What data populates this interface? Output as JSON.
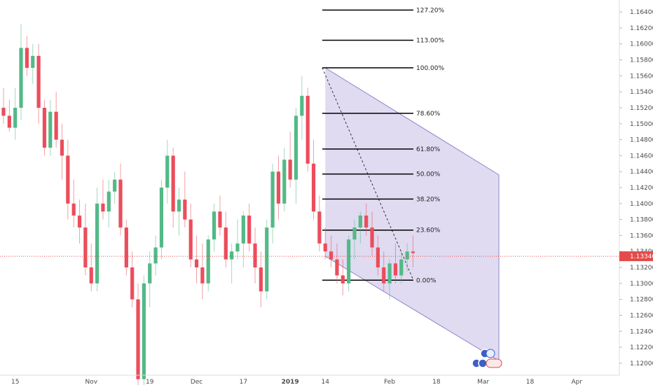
{
  "colors": {
    "up": "#53b987",
    "down": "#eb4d5c",
    "channel_fill": "#d8d2ee",
    "channel_line": "#8f86c9",
    "price_line": "#e44a4a",
    "axis_text": "#4a4a4a"
  },
  "chart_data": {
    "type": "candlestick",
    "price_axis": {
      "ylim": [
        1.1185,
        1.1655
      ],
      "ticks": [
        "1.16400",
        "1.16200",
        "1.16000",
        "1.15800",
        "1.15600",
        "1.15400",
        "1.15200",
        "1.15000",
        "1.14800",
        "1.14600",
        "1.14400",
        "1.14200",
        "1.14000",
        "1.13800",
        "1.13600",
        "1.13400",
        "1.13200",
        "1.13000",
        "1.12800",
        "1.12600",
        "1.12400",
        "1.12200",
        "1.12000"
      ],
      "current_price_label": "1.13340",
      "current_price": 1.1334
    },
    "time_axis": {
      "labels": [
        {
          "label": "15",
          "bar": 2
        },
        {
          "label": "Nov",
          "bar": 15
        },
        {
          "label": "19",
          "bar": 25
        },
        {
          "label": "Dec",
          "bar": 33
        },
        {
          "label": "17",
          "bar": 41
        },
        {
          "label": "2019",
          "bar": 49
        },
        {
          "label": "14",
          "bar": 55
        },
        {
          "label": "Feb",
          "bar": 66
        },
        {
          "label": "18",
          "bar": 74
        },
        {
          "label": "Mar",
          "bar": 82
        },
        {
          "label": "18",
          "bar": 90
        },
        {
          "label": "Apr",
          "bar": 98
        }
      ]
    },
    "candles": [
      [
        1.152,
        1.1545,
        1.15,
        1.151
      ],
      [
        1.151,
        1.153,
        1.149,
        1.1495
      ],
      [
        1.1495,
        1.1545,
        1.148,
        1.152
      ],
      [
        1.152,
        1.1625,
        1.1505,
        1.1595
      ],
      [
        1.1595,
        1.161,
        1.156,
        1.157
      ],
      [
        1.157,
        1.16,
        1.155,
        1.1585
      ],
      [
        1.1585,
        1.16,
        1.15,
        1.152
      ],
      [
        1.152,
        1.153,
        1.146,
        1.147
      ],
      [
        1.147,
        1.153,
        1.146,
        1.1515
      ],
      [
        1.1515,
        1.154,
        1.147,
        1.148
      ],
      [
        1.148,
        1.15,
        1.143,
        1.146
      ],
      [
        1.146,
        1.148,
        1.138,
        1.14
      ],
      [
        1.14,
        1.143,
        1.137,
        1.1385
      ],
      [
        1.1385,
        1.1405,
        1.135,
        1.137
      ],
      [
        1.137,
        1.14,
        1.131,
        1.132
      ],
      [
        1.132,
        1.135,
        1.129,
        1.13
      ],
      [
        1.13,
        1.142,
        1.129,
        1.14
      ],
      [
        1.14,
        1.143,
        1.138,
        1.139
      ],
      [
        1.139,
        1.143,
        1.137,
        1.1415
      ],
      [
        1.1415,
        1.144,
        1.14,
        1.143
      ],
      [
        1.143,
        1.145,
        1.136,
        1.137
      ],
      [
        1.137,
        1.138,
        1.131,
        1.132
      ],
      [
        1.132,
        1.134,
        1.127,
        1.128
      ],
      [
        1.128,
        1.13,
        1.117,
        1.118
      ],
      [
        1.118,
        1.131,
        1.117,
        1.13
      ],
      [
        1.13,
        1.134,
        1.127,
        1.1325
      ],
      [
        1.1325,
        1.136,
        1.131,
        1.1345
      ],
      [
        1.1345,
        1.143,
        1.133,
        1.142
      ],
      [
        1.142,
        1.148,
        1.14,
        1.146
      ],
      [
        1.146,
        1.147,
        1.137,
        1.139
      ],
      [
        1.139,
        1.142,
        1.136,
        1.1405
      ],
      [
        1.1405,
        1.144,
        1.137,
        1.138
      ],
      [
        1.138,
        1.14,
        1.132,
        1.133
      ],
      [
        1.133,
        1.136,
        1.13,
        1.132
      ],
      [
        1.132,
        1.135,
        1.128,
        1.13
      ],
      [
        1.13,
        1.136,
        1.129,
        1.1355
      ],
      [
        1.1355,
        1.14,
        1.134,
        1.139
      ],
      [
        1.139,
        1.141,
        1.136,
        1.137
      ],
      [
        1.137,
        1.139,
        1.132,
        1.133
      ],
      [
        1.133,
        1.135,
        1.13,
        1.134
      ],
      [
        1.134,
        1.138,
        1.133,
        1.135
      ],
      [
        1.135,
        1.139,
        1.132,
        1.1385
      ],
      [
        1.1385,
        1.14,
        1.134,
        1.135
      ],
      [
        1.135,
        1.137,
        1.13,
        1.132
      ],
      [
        1.132,
        1.134,
        1.127,
        1.129
      ],
      [
        1.129,
        1.138,
        1.128,
        1.137
      ],
      [
        1.137,
        1.145,
        1.135,
        1.144
      ],
      [
        1.144,
        1.146,
        1.138,
        1.14
      ],
      [
        1.14,
        1.147,
        1.139,
        1.1455
      ],
      [
        1.1455,
        1.149,
        1.142,
        1.143
      ],
      [
        1.143,
        1.152,
        1.14,
        1.151
      ],
      [
        1.151,
        1.156,
        1.148,
        1.1535
      ],
      [
        1.1535,
        1.1545,
        1.144,
        1.145
      ],
      [
        1.145,
        1.148,
        1.138,
        1.139
      ],
      [
        1.139,
        1.141,
        1.134,
        1.135
      ],
      [
        1.135,
        1.137,
        1.133,
        1.134
      ],
      [
        1.134,
        1.136,
        1.132,
        1.133
      ],
      [
        1.133,
        1.135,
        1.13,
        1.131
      ],
      [
        1.131,
        1.133,
        1.1285,
        1.13
      ],
      [
        1.13,
        1.136,
        1.129,
        1.1355
      ],
      [
        1.1355,
        1.138,
        1.133,
        1.137
      ],
      [
        1.137,
        1.139,
        1.135,
        1.1385
      ],
      [
        1.1385,
        1.14,
        1.136,
        1.137
      ],
      [
        1.137,
        1.139,
        1.1335,
        1.1345
      ],
      [
        1.1345,
        1.136,
        1.131,
        1.132
      ],
      [
        1.132,
        1.134,
        1.129,
        1.13
      ],
      [
        1.13,
        1.133,
        1.128,
        1.1325
      ],
      [
        1.1325,
        1.135,
        1.13,
        1.131
      ],
      [
        1.131,
        1.134,
        1.13,
        1.133
      ],
      [
        1.133,
        1.135,
        1.1315,
        1.134
      ],
      [
        1.134,
        1.136,
        1.132,
        1.1338
      ]
    ],
    "fibonacci": {
      "price_100": 1.157,
      "price_0": 1.1304,
      "levels": [
        {
          "label": "127.20%",
          "ratio": 1.272
        },
        {
          "label": "113.00%",
          "ratio": 1.13
        },
        {
          "label": "100.00%",
          "ratio": 1.0
        },
        {
          "label": "78.60%",
          "ratio": 0.786
        },
        {
          "label": "61.80%",
          "ratio": 0.618
        },
        {
          "label": "50.00%",
          "ratio": 0.5
        },
        {
          "label": "38.20%",
          "ratio": 0.382
        },
        {
          "label": "23.60%",
          "ratio": 0.236
        },
        {
          "label": "0.00%",
          "ratio": 0.0
        }
      ]
    },
    "channel": {
      "upper_start": 1.157,
      "upper_end": 1.1436,
      "lower_start": 1.1334,
      "lower_end": 1.1203
    }
  }
}
